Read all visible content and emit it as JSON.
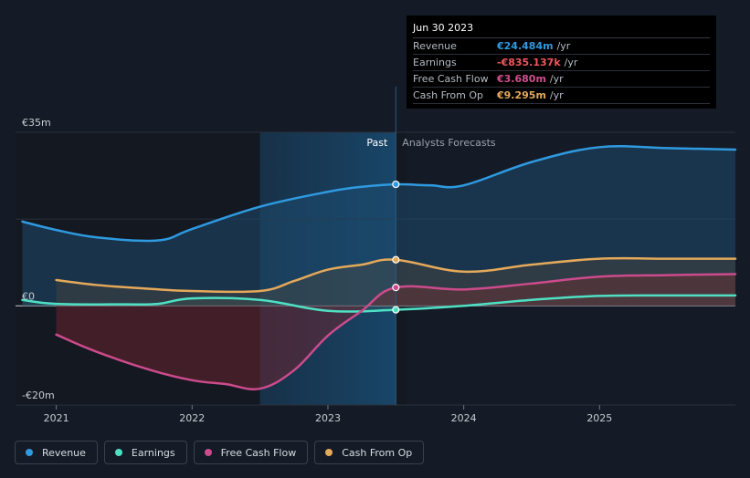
{
  "tooltip": {
    "date": "Jun 30 2023",
    "rows": [
      {
        "label": "Revenue",
        "value": "€24.484m",
        "unit": "/yr",
        "color": "#2f9ae0"
      },
      {
        "label": "Earnings",
        "value": "-€835.137k",
        "unit": "/yr",
        "color": "#f0565e"
      },
      {
        "label": "Free Cash Flow",
        "value": "€3.680m",
        "unit": "/yr",
        "color": "#d24f8f"
      },
      {
        "label": "Cash From Op",
        "value": "€9.295m",
        "unit": "/yr",
        "color": "#e5a95b"
      }
    ]
  },
  "legend": [
    {
      "label": "Revenue",
      "color": "#2f9ae0"
    },
    {
      "label": "Earnings",
      "color": "#4fe0c4"
    },
    {
      "label": "Free Cash Flow",
      "color": "#cc4b8c"
    },
    {
      "label": "Cash From Op",
      "color": "#e5a95b"
    }
  ],
  "chart_data": {
    "type": "line",
    "ylim": [
      -20,
      35
    ],
    "ytick_labels": [
      {
        "value": 35,
        "label": "€35m"
      },
      {
        "value": 0,
        "label": "€0"
      },
      {
        "value": -20,
        "label": "-€20m"
      }
    ],
    "xlim": [
      2020.7,
      2026.0
    ],
    "xtick_labels": [
      {
        "value": 2021,
        "label": "2021"
      },
      {
        "value": 2022,
        "label": "2022"
      },
      {
        "value": 2023,
        "label": "2023"
      },
      {
        "value": 2024,
        "label": "2024"
      },
      {
        "value": 2025,
        "label": "2025"
      }
    ],
    "past_label": "Past",
    "forecast_label": "Analysts Forecasts",
    "divider_x": 2023.5,
    "highlight_start_x": 2022.5,
    "series": [
      {
        "name": "Revenue",
        "color": "#2f9ae0",
        "points": [
          [
            2020.75,
            17.0
          ],
          [
            2021.0,
            15.3
          ],
          [
            2021.3,
            13.8
          ],
          [
            2021.75,
            13.2
          ],
          [
            2022.0,
            15.5
          ],
          [
            2022.5,
            20.0
          ],
          [
            2023.0,
            23.0
          ],
          [
            2023.25,
            24.0
          ],
          [
            2023.5,
            24.5
          ],
          [
            2023.75,
            24.3
          ],
          [
            2024.0,
            24.3
          ],
          [
            2024.5,
            29.0
          ],
          [
            2025.0,
            32.0
          ],
          [
            2025.5,
            31.8
          ],
          [
            2026.0,
            31.5
          ]
        ]
      },
      {
        "name": "Earnings",
        "color": "#4fe0c4",
        "points": [
          [
            2020.75,
            1.2
          ],
          [
            2021.0,
            0.4
          ],
          [
            2021.5,
            0.3
          ],
          [
            2021.75,
            0.4
          ],
          [
            2022.0,
            1.5
          ],
          [
            2022.5,
            1.2
          ],
          [
            2023.0,
            -1.0
          ],
          [
            2023.5,
            -0.8
          ],
          [
            2024.0,
            0.0
          ],
          [
            2024.5,
            1.2
          ],
          [
            2025.0,
            2.0
          ],
          [
            2025.5,
            2.1
          ],
          [
            2026.0,
            2.1
          ]
        ]
      },
      {
        "name": "Free Cash Flow",
        "color": "#cc4b8c",
        "points": [
          [
            2021.0,
            -5.8
          ],
          [
            2021.3,
            -9.3
          ],
          [
            2021.7,
            -13.0
          ],
          [
            2022.0,
            -15.0
          ],
          [
            2022.25,
            -15.8
          ],
          [
            2022.5,
            -16.7
          ],
          [
            2022.75,
            -13.0
          ],
          [
            2023.0,
            -6.0
          ],
          [
            2023.25,
            -1.0
          ],
          [
            2023.5,
            3.7
          ],
          [
            2024.0,
            3.3
          ],
          [
            2024.5,
            4.5
          ],
          [
            2025.0,
            5.9
          ],
          [
            2025.5,
            6.2
          ],
          [
            2026.0,
            6.4
          ]
        ]
      },
      {
        "name": "Cash From Op",
        "color": "#e5a95b",
        "points": [
          [
            2021.0,
            5.2
          ],
          [
            2021.3,
            4.2
          ],
          [
            2021.7,
            3.4
          ],
          [
            2022.0,
            3.0
          ],
          [
            2022.5,
            3.0
          ],
          [
            2022.75,
            5.0
          ],
          [
            2023.0,
            7.3
          ],
          [
            2023.25,
            8.3
          ],
          [
            2023.5,
            9.3
          ],
          [
            2024.0,
            6.9
          ],
          [
            2024.5,
            8.3
          ],
          [
            2025.0,
            9.5
          ],
          [
            2025.5,
            9.5
          ],
          [
            2026.0,
            9.5
          ]
        ]
      }
    ]
  }
}
